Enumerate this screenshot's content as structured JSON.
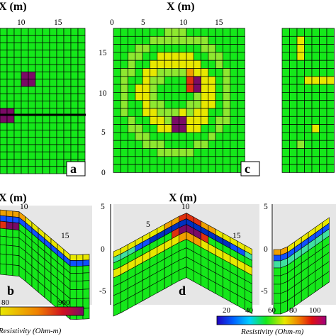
{
  "panels": {
    "a": {
      "title": "X (m)",
      "xticks": [
        "10",
        "15"
      ],
      "label": "a"
    },
    "c": {
      "title": "X (m)",
      "xticks": [
        "0",
        "5",
        "10",
        "15"
      ],
      "yticks": [
        "15",
        "10",
        "5",
        "0"
      ],
      "label": "c"
    },
    "b": {
      "title": "X (m)",
      "tick": "10",
      "tick2": "15",
      "label": "b"
    },
    "d": {
      "title": "X (m)",
      "ticks": [
        "5",
        "0",
        "-5"
      ],
      "tick_top": "10",
      "tick_left": "5",
      "tick_right": "15",
      "label": "d"
    },
    "e": {
      "ticks": [
        "5",
        "0",
        "-5"
      ]
    }
  },
  "colorbars": [
    {
      "ticks": [
        "80",
        "900"
      ],
      "title": "Resistivity (Ohm-m)"
    },
    {
      "ticks": [
        "20",
        "40",
        "60",
        "80",
        "100"
      ],
      "title": "Resistivity (Ohm-m)"
    }
  ],
  "colors": {
    "background": "#15e81a",
    "grid": "#000000",
    "anomaly": "#7a0a66"
  }
}
